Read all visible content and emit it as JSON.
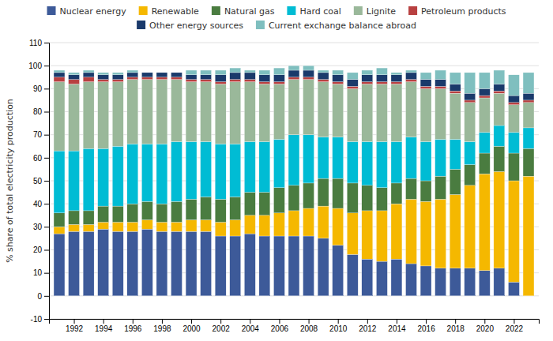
{
  "chart_data": {
    "type": "bar",
    "stacked": true,
    "ylabel": "% share of total electricity production",
    "x": [
      1991,
      1992,
      1993,
      1994,
      1995,
      1996,
      1997,
      1998,
      1999,
      2000,
      2001,
      2002,
      2003,
      2004,
      2005,
      2006,
      2007,
      2008,
      2009,
      2010,
      2011,
      2012,
      2013,
      2014,
      2015,
      2016,
      2017,
      2018,
      2019,
      2020,
      2021,
      2022,
      2023
    ],
    "series": [
      {
        "name": "Nuclear energy",
        "color": "#3d5a99",
        "values": [
          27,
          28,
          28,
          29,
          28,
          28,
          29,
          28,
          28,
          28,
          28,
          26,
          26,
          27,
          26,
          26,
          26,
          26,
          25,
          22,
          18,
          16,
          15,
          16,
          14,
          13,
          12,
          12,
          12,
          11,
          12,
          6,
          0
        ]
      },
      {
        "name": "Renewable",
        "color": "#f5b800",
        "values": [
          3,
          3,
          3,
          3,
          4,
          4,
          4,
          4,
          4,
          5,
          5,
          6,
          7,
          8,
          9,
          10,
          11,
          12,
          14,
          16,
          18,
          21,
          22,
          24,
          28,
          28,
          30,
          32,
          36,
          42,
          42,
          44,
          52
        ]
      },
      {
        "name": "Natural gas",
        "color": "#4a7c40",
        "values": [
          6,
          6,
          6,
          7,
          7,
          8,
          8,
          8,
          9,
          9,
          10,
          10,
          10,
          10,
          10,
          11,
          11,
          11,
          12,
          13,
          13,
          11,
          10,
          9,
          9,
          9,
          10,
          11,
          9,
          9,
          11,
          12,
          12
        ]
      },
      {
        "name": "Hard coal",
        "color": "#00bcd4",
        "values": [
          27,
          26,
          27,
          25,
          26,
          26,
          25,
          26,
          26,
          25,
          24,
          24,
          23,
          22,
          22,
          21,
          22,
          21,
          18,
          18,
          18,
          19,
          20,
          18,
          18,
          17,
          16,
          13,
          10,
          9,
          9,
          9,
          9
        ]
      },
      {
        "name": "Lignite",
        "color": "#9ab89a",
        "values": [
          30,
          29,
          29,
          29,
          28,
          28,
          28,
          28,
          27,
          26,
          26,
          26,
          27,
          26,
          25,
          24,
          24,
          24,
          24,
          23,
          23,
          25,
          25,
          25,
          24,
          23,
          22,
          20,
          17,
          15,
          14,
          12,
          11
        ]
      },
      {
        "name": "Petroleum products",
        "color": "#b84040",
        "values": [
          2,
          2,
          2,
          1,
          1,
          1,
          1,
          1,
          1,
          1,
          1,
          1,
          1,
          1,
          1,
          1,
          1,
          1,
          1,
          1,
          1,
          1,
          1,
          1,
          1,
          1,
          1,
          1,
          1,
          1,
          1,
          1,
          1
        ]
      },
      {
        "name": "Other energy sources",
        "color": "#1a3a6b",
        "values": [
          2,
          2,
          2,
          2,
          2,
          2,
          2,
          2,
          2,
          2,
          2,
          3,
          3,
          3,
          3,
          3,
          3,
          3,
          3,
          3,
          3,
          3,
          3,
          3,
          3,
          3,
          3,
          3,
          3,
          3,
          3,
          3,
          3
        ]
      },
      {
        "name": "Current exchange balance abroad",
        "color": "#7fbfbf",
        "values": [
          1,
          1,
          1,
          1,
          1,
          1,
          0,
          0,
          0,
          2,
          2,
          2,
          2,
          1,
          2,
          3,
          2,
          2,
          1,
          2,
          3,
          2,
          3,
          1,
          1,
          3,
          4,
          5,
          9,
          7,
          6,
          9,
          9
        ]
      }
    ],
    "xlim": [
      1990.3,
      2023.7
    ],
    "xticks": [
      1992,
      1994,
      1996,
      1998,
      2000,
      2002,
      2004,
      2006,
      2008,
      2010,
      2012,
      2014,
      2016,
      2018,
      2020,
      2022
    ],
    "ylim": [
      -10,
      110
    ],
    "yticks": [
      -10,
      0,
      10,
      20,
      30,
      40,
      50,
      60,
      70,
      80,
      90,
      100,
      110
    ],
    "grid": true,
    "legend": "top"
  }
}
